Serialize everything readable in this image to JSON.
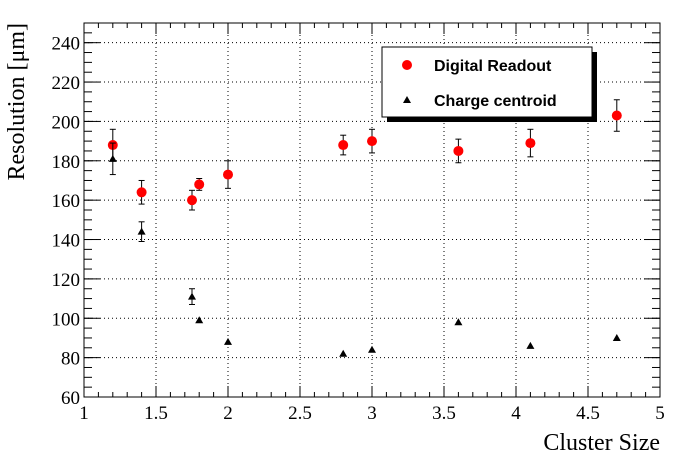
{
  "chart_data": {
    "type": "scatter",
    "title": "",
    "xlabel": "Cluster Size",
    "ylabel": "Resolution [μm]",
    "xlim": [
      1,
      5
    ],
    "ylim": [
      60,
      250
    ],
    "xticks": [
      1,
      1.5,
      2,
      2.5,
      3,
      3.5,
      4,
      4.5,
      5
    ],
    "xtick_labels": [
      "1",
      "1.5",
      "2",
      "2.5",
      "3",
      "3.5",
      "4",
      "4.5",
      "5"
    ],
    "yticks": [
      60,
      80,
      100,
      120,
      140,
      160,
      180,
      200,
      220,
      240
    ],
    "ytick_labels": [
      "60",
      "80",
      "100",
      "120",
      "140",
      "160",
      "180",
      "200",
      "220",
      "240"
    ],
    "grid": true,
    "legend_position": "top-right",
    "series": [
      {
        "name": "Digital Readout",
        "marker": "circle",
        "color": "#ff0000",
        "points": [
          {
            "x": 1.2,
            "y": 188,
            "err": 8
          },
          {
            "x": 1.4,
            "y": 164,
            "err": 6
          },
          {
            "x": 1.75,
            "y": 160,
            "err": 5
          },
          {
            "x": 1.8,
            "y": 168,
            "err": 3
          },
          {
            "x": 2.0,
            "y": 173,
            "err": 7
          },
          {
            "x": 2.8,
            "y": 188,
            "err": 5
          },
          {
            "x": 3.0,
            "y": 190,
            "err": 6
          },
          {
            "x": 3.6,
            "y": 185,
            "err": 6
          },
          {
            "x": 4.1,
            "y": 189,
            "err": 7
          },
          {
            "x": 4.7,
            "y": 203,
            "err": 8
          }
        ]
      },
      {
        "name": "Charge centroid",
        "marker": "triangle",
        "color": "#000000",
        "points": [
          {
            "x": 1.2,
            "y": 181,
            "err": 8
          },
          {
            "x": 1.4,
            "y": 144,
            "err": 5
          },
          {
            "x": 1.75,
            "y": 111,
            "err": 4
          },
          {
            "x": 1.8,
            "y": 99,
            "err": 0
          },
          {
            "x": 2.0,
            "y": 88,
            "err": 0
          },
          {
            "x": 2.8,
            "y": 82,
            "err": 0
          },
          {
            "x": 3.0,
            "y": 84,
            "err": 0
          },
          {
            "x": 3.6,
            "y": 98,
            "err": 0
          },
          {
            "x": 4.1,
            "y": 86,
            "err": 0
          },
          {
            "x": 4.7,
            "y": 90,
            "err": 0
          }
        ]
      }
    ]
  }
}
